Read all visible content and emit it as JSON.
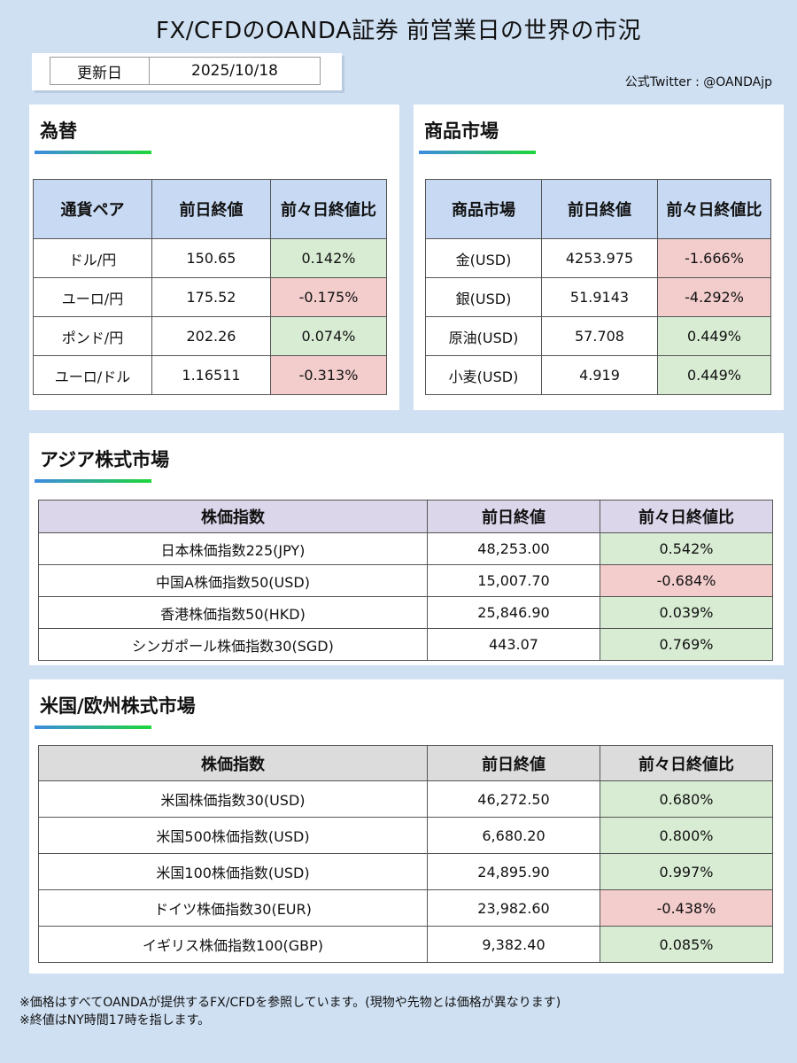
{
  "title": "FX/CFDのOANDA証券 前営業日の世界の市況",
  "update": {
    "label": "更新日",
    "date": "2025/10/18"
  },
  "twitter": "公式Twitter : @OANDAjp",
  "fx": {
    "title": "為替",
    "headers": [
      "通貨ペア",
      "前日終値",
      "前々日終値比"
    ],
    "rows": [
      {
        "name": "ドル/円",
        "close": "150.65",
        "change": "0.142%"
      },
      {
        "name": "ユーロ/円",
        "close": "175.52",
        "change": "-0.175%"
      },
      {
        "name": "ポンド/円",
        "close": "202.26",
        "change": "0.074%"
      },
      {
        "name": "ユーロ/ドル",
        "close": "1.16511",
        "change": "-0.313%"
      }
    ]
  },
  "commodity": {
    "title": "商品市場",
    "headers": [
      "商品市場",
      "前日終値",
      "前々日終値比"
    ],
    "rows": [
      {
        "name": "金(USD)",
        "close": "4253.975",
        "change": "-1.666%"
      },
      {
        "name": "銀(USD)",
        "close": "51.9143",
        "change": "-4.292%"
      },
      {
        "name": "原油(USD)",
        "close": "57.708",
        "change": "0.449%"
      },
      {
        "name": "小麦(USD)",
        "close": "4.919",
        "change": "0.449%"
      }
    ]
  },
  "asia": {
    "title": "アジア株式市場",
    "headers": [
      "株価指数",
      "前日終値",
      "前々日終値比"
    ],
    "rows": [
      {
        "name": "日本株価指数225(JPY)",
        "close": "48,253.00",
        "change": "0.542%"
      },
      {
        "name": "中国A株価指数50(USD)",
        "close": "15,007.70",
        "change": "-0.684%"
      },
      {
        "name": "香港株価指数50(HKD)",
        "close": "25,846.90",
        "change": "0.039%"
      },
      {
        "name": "シンガポール株価指数30(SGD)",
        "close": "443.07",
        "change": "0.769%"
      }
    ]
  },
  "us_eu": {
    "title": "米国/欧州株式市場",
    "headers": [
      "株価指数",
      "前日終値",
      "前々日終値比"
    ],
    "rows": [
      {
        "name": "米国株価指数30(USD)",
        "close": "46,272.50",
        "change": "0.680%"
      },
      {
        "name": "米国500株価指数(USD)",
        "close": "6,680.20",
        "change": "0.800%"
      },
      {
        "name": "米国100株価指数(USD)",
        "close": "24,895.90",
        "change": "0.997%"
      },
      {
        "name": "ドイツ株価指数30(EUR)",
        "close": "23,982.60",
        "change": "-0.438%"
      },
      {
        "name": "イギリス株価指数100(GBP)",
        "close": "9,382.40",
        "change": "0.085%"
      }
    ]
  },
  "notes": [
    "※価格はすべてOANDAが提供するFX/CFDを参照しています。(現物や先物とは価格が異なります)",
    "※終値はNY時間17時を指します。"
  ]
}
